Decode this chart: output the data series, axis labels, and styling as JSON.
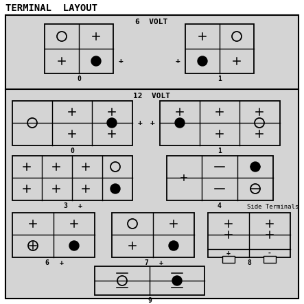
{
  "title": "TERMINAL  LAYOUT",
  "bg_color": "#d4d4d4",
  "outer_bg": "#ffffff",
  "section1_title": "6  VOLT",
  "section2_title": "12  VOLT",
  "side_terminals_label": "Side Terminals",
  "font_family": "monospace",
  "figsize": [
    4.43,
    4.43
  ],
  "dpi": 100
}
